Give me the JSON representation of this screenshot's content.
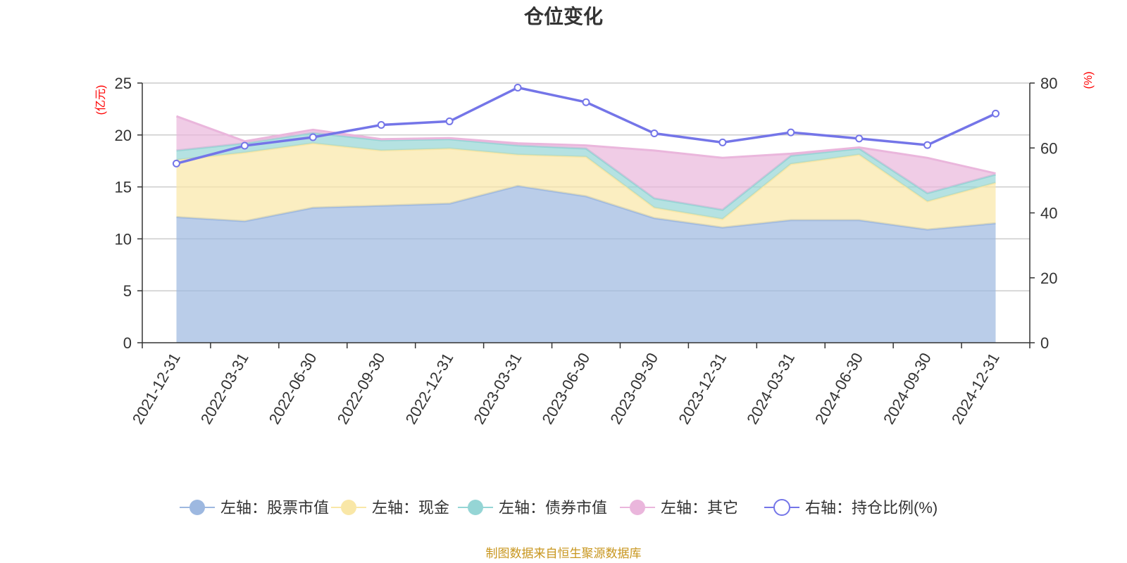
{
  "chart_data": {
    "type": "area",
    "title": "仓位变化",
    "left_axis_unit": "(亿元)",
    "right_axis_unit": "(%)",
    "categories": [
      "2021-12-31",
      "2022-03-31",
      "2022-06-30",
      "2022-09-30",
      "2022-12-31",
      "2023-03-31",
      "2023-06-30",
      "2023-09-30",
      "2023-12-31",
      "2024-03-31",
      "2024-06-30",
      "2024-09-30",
      "2024-12-31"
    ],
    "y_left": {
      "min": 0,
      "max": 25,
      "ticks": [
        0,
        5,
        10,
        15,
        20,
        25
      ]
    },
    "y_right": {
      "min": 0,
      "max": 80,
      "ticks": [
        0,
        20,
        40,
        60,
        80
      ]
    },
    "stacked": true,
    "series": [
      {
        "name": "左轴：股票市值",
        "axis": "left",
        "color": "#9db8e0",
        "values": [
          12.1,
          11.7,
          13.0,
          13.2,
          13.4,
          15.1,
          14.1,
          12.0,
          11.1,
          11.8,
          11.8,
          10.9,
          11.5
        ]
      },
      {
        "name": "左轴：现金",
        "axis": "left",
        "color": "#f9e7a7",
        "values": [
          5.5,
          6.6,
          6.2,
          5.3,
          5.3,
          3.0,
          3.8,
          1.0,
          0.8,
          5.4,
          6.3,
          2.7,
          3.9
        ]
      },
      {
        "name": "左轴：债券市值",
        "axis": "left",
        "color": "#95d5d5",
        "values": [
          0.9,
          0.9,
          1.0,
          1.0,
          0.9,
          0.9,
          0.8,
          0.9,
          0.9,
          0.8,
          0.6,
          0.8,
          0.8
        ]
      },
      {
        "name": "左轴：其它",
        "axis": "left",
        "color": "#eab6dc",
        "values": [
          3.3,
          0.2,
          0.3,
          0.1,
          0.1,
          0.2,
          0.3,
          4.6,
          5.0,
          0.2,
          0.1,
          3.4,
          0.1
        ]
      },
      {
        "name": "右轴：持仓比例(%)",
        "axis": "right",
        "type": "line",
        "color": "#7475e8",
        "values": [
          55.2,
          60.7,
          63.3,
          67.1,
          68.2,
          78.6,
          74.1,
          64.5,
          61.7,
          64.8,
          62.9,
          60.9,
          70.6
        ]
      }
    ],
    "grid": true,
    "legend_position": "bottom"
  },
  "source_note": "制图数据来自恒生聚源数据库"
}
